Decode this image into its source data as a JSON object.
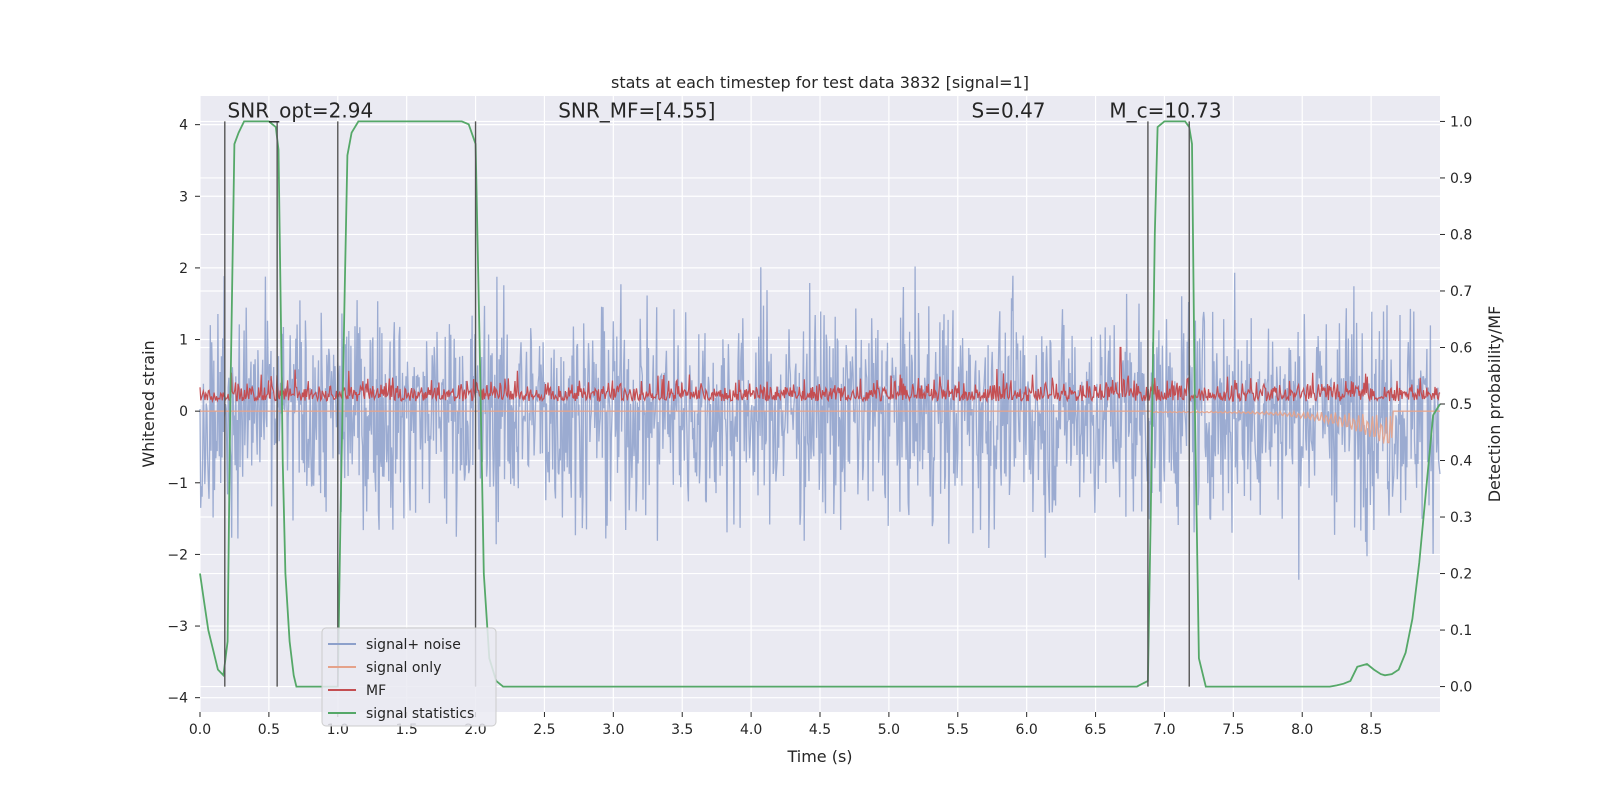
{
  "chart_data": {
    "type": "line",
    "title": "stats at each timestep for test data 3832 [signal=1]",
    "xlabel": "Time (s)",
    "ylabel_left": "Whitened strain",
    "ylabel_right": "Detection probability/MF",
    "xlim": [
      0.0,
      9.0
    ],
    "ylim_left": [
      -4.2,
      4.4
    ],
    "ylim_right": [
      -0.045,
      1.045
    ],
    "x_ticks": [
      "0.0",
      "0.5",
      "1.0",
      "1.5",
      "2.0",
      "2.5",
      "3.0",
      "3.5",
      "4.0",
      "4.5",
      "5.0",
      "5.5",
      "6.0",
      "6.5",
      "7.0",
      "7.5",
      "8.0",
      "8.5"
    ],
    "y_ticks_left": [
      "−4",
      "−3",
      "−2",
      "−1",
      "0",
      "1",
      "2",
      "3",
      "4"
    ],
    "y_ticks_right": [
      "0.0",
      "0.1",
      "0.2",
      "0.3",
      "0.4",
      "0.5",
      "0.6",
      "0.7",
      "0.8",
      "0.9",
      "1.0"
    ],
    "grid": true,
    "legend_position": "lower-left",
    "annotations": [
      {
        "text": "SNR_opt=2.94",
        "x": 0.2,
        "y": 4.1
      },
      {
        "text": "SNR_MF=[4.55]",
        "x": 2.6,
        "y": 4.1
      },
      {
        "text": "S=0.47",
        "x": 5.6,
        "y": 4.1
      },
      {
        "text": "M_c=10.73",
        "x": 6.6,
        "y": 4.1
      }
    ],
    "series": [
      {
        "name": "signal+ noise",
        "axis": "left",
        "color": "#8da0cb",
        "description": "whitened noisy strain, roughly within -3 to 4"
      },
      {
        "name": "signal only",
        "axis": "left",
        "color": "#e5a28a",
        "description": "small chirp rising near 7.0–8.65 s, minimum about -0.55"
      },
      {
        "name": "MF",
        "axis": "right",
        "color": "#c44e52",
        "description": "matched filter output around 0.5–0.58 on right axis, spike to 0.6 near 6.68 s"
      },
      {
        "name": "signal statistics",
        "axis": "right",
        "color": "#55a868",
        "x": [
          0.0,
          0.03,
          0.06,
          0.1,
          0.13,
          0.17,
          0.2,
          0.22,
          0.25,
          0.28,
          0.32,
          0.38,
          0.42,
          0.45,
          0.5,
          0.55,
          0.57,
          0.59,
          0.6,
          0.62,
          0.65,
          0.68,
          0.7,
          0.75,
          0.8,
          0.9,
          1.0,
          1.02,
          1.05,
          1.07,
          1.1,
          1.15,
          1.2,
          1.3,
          1.5,
          1.8,
          1.9,
          1.95,
          2.0,
          2.03,
          2.06,
          2.1,
          2.15,
          2.2,
          2.5,
          3.0,
          4.0,
          5.0,
          6.0,
          6.5,
          6.8,
          6.88,
          6.9,
          6.93,
          6.95,
          7.0,
          7.1,
          7.15,
          7.18,
          7.2,
          7.22,
          7.25,
          7.3,
          7.5,
          8.0,
          8.2,
          8.25,
          8.3,
          8.35,
          8.4,
          8.47,
          8.52,
          8.57,
          8.6,
          8.65,
          8.7,
          8.75,
          8.8,
          8.85,
          8.9,
          8.95,
          9.0
        ],
        "y": [
          0.2,
          0.15,
          0.1,
          0.06,
          0.03,
          0.02,
          0.08,
          0.5,
          0.96,
          0.98,
          1.0,
          1.0,
          1.0,
          1.0,
          1.0,
          0.99,
          0.95,
          0.6,
          0.4,
          0.2,
          0.08,
          0.02,
          0.0,
          0.0,
          0.0,
          0.0,
          0.0,
          0.3,
          0.7,
          0.94,
          0.98,
          1.0,
          1.0,
          1.0,
          1.0,
          1.0,
          1.0,
          0.995,
          0.96,
          0.6,
          0.2,
          0.05,
          0.01,
          0.0,
          0.0,
          0.0,
          0.0,
          0.0,
          0.0,
          0.0,
          0.0,
          0.01,
          0.3,
          0.8,
          0.99,
          1.0,
          1.0,
          1.0,
          0.99,
          0.96,
          0.5,
          0.05,
          0.0,
          0.0,
          0.0,
          0.0,
          0.002,
          0.005,
          0.01,
          0.035,
          0.04,
          0.03,
          0.022,
          0.02,
          0.022,
          0.03,
          0.06,
          0.12,
          0.22,
          0.35,
          0.48,
          0.5
        ]
      }
    ],
    "vertical_lines_x": [
      0.18,
      0.56,
      1.0,
      2.0,
      6.88,
      7.18
    ]
  }
}
